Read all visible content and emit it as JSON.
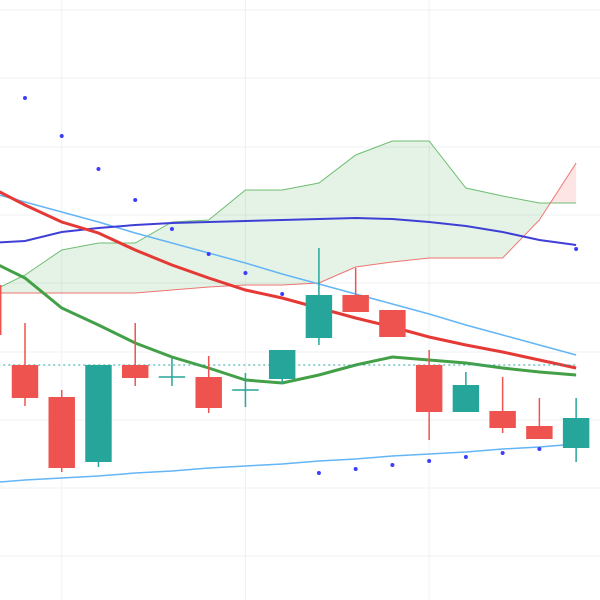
{
  "chart_data": {
    "type": "candlestick",
    "x": [
      0,
      1,
      2,
      3,
      4,
      5,
      6,
      7,
      8,
      9,
      10,
      11,
      12,
      13,
      14,
      15,
      16
    ],
    "xlim": [
      0.32,
      16.65
    ],
    "xticks": [
      2,
      7,
      12
    ],
    "ylim": [
      0,
      600
    ],
    "yticks": [
      44,
      112,
      180,
      248,
      317,
      385,
      453,
      522,
      590
    ],
    "grid": true,
    "increasing_color": "#26a69a",
    "decreasing_color": "#ef5350",
    "open": [
      315,
      235,
      203,
      138,
      235,
      223,
      223,
      210,
      221,
      262,
      305,
      290,
      235,
      188,
      189,
      174,
      152
    ],
    "high": [
      320,
      277,
      210,
      235,
      277,
      242,
      244,
      227,
      250,
      352,
      332,
      290,
      250,
      228,
      223,
      202,
      202
    ],
    "low": [
      262,
      194,
      128,
      133,
      214,
      214,
      187,
      193,
      216,
      255,
      288,
      263,
      160,
      188,
      167,
      161,
      138
    ],
    "close": [
      265,
      202,
      132,
      235,
      222,
      223,
      192,
      210,
      250,
      305,
      288,
      263,
      188,
      215,
      172,
      161,
      182
    ],
    "cloud": {
      "span_a": [
        307,
        325,
        350,
        357,
        357,
        378,
        380,
        410,
        410,
        417,
        445,
        459,
        459,
        412,
        404,
        397,
        397
      ],
      "span_b": [
        307,
        307,
        307,
        307,
        307,
        310,
        313,
        315,
        315,
        317,
        333,
        338,
        342,
        342,
        342,
        380,
        437
      ],
      "bull_color": "#4caf50",
      "bear_color": "#ef5350"
    },
    "lines": [
      {
        "color": "#64b5f6",
        "width": 1.5,
        "values": [
          408,
          398,
          388,
          378,
          367,
          357,
          347,
          337,
          326,
          316,
          306,
          296,
          286,
          275,
          265,
          255,
          245
        ]
      },
      {
        "color": "#64b5f6",
        "width": 1.5,
        "values": [
          117,
          120,
          122,
          124,
          127,
          129,
          132,
          134,
          136,
          139,
          141,
          144,
          146,
          148,
          151,
          153,
          156
        ]
      },
      {
        "color": "#3f3fd6",
        "width": 2,
        "values": [
          357,
          359,
          368,
          372,
          375,
          377,
          378,
          379,
          380,
          381,
          382,
          381,
          378,
          374,
          368,
          360,
          355
        ]
      },
      {
        "color": "#e53935",
        "width": 3,
        "values": [
          414,
          395,
          378,
          367,
          350,
          335,
          322,
          310,
          302,
          292,
          282,
          273,
          263,
          255,
          248,
          240,
          232
        ]
      },
      {
        "color": "#43a047",
        "width": 3,
        "values": [
          340,
          322,
          292,
          275,
          257,
          243,
          232,
          220,
          217,
          225,
          235,
          243,
          240,
          237,
          232,
          228,
          225
        ]
      },
      {
        "color": "#26a69a",
        "width": 1,
        "dash": true,
        "values": [
          235,
          235,
          235,
          235,
          235,
          235,
          235,
          235,
          235,
          235,
          235,
          235,
          235,
          235,
          235,
          235,
          235
        ]
      }
    ],
    "markers": {
      "color": "#3d3dff",
      "values": [
        null,
        502,
        464,
        431,
        400,
        371,
        346,
        327,
        306,
        127,
        131,
        135,
        139,
        143,
        147,
        151,
        351
      ]
    }
  }
}
